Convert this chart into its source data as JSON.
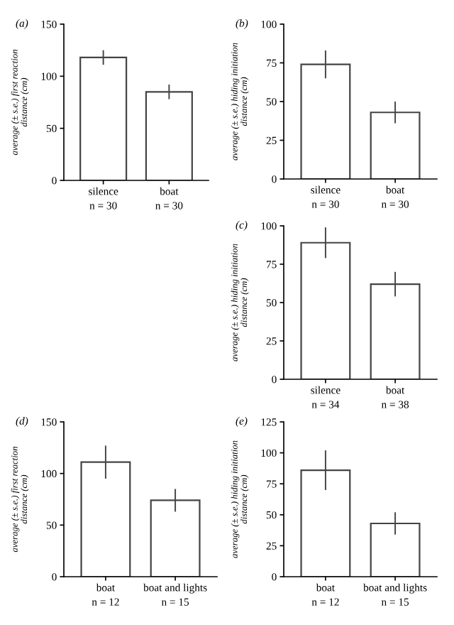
{
  "chart_data": [
    {
      "type": "bar",
      "title": "(a)",
      "ylabel": "average (± s.e.) first reaction\ndistance (cm)",
      "categories": [
        "silence\nn = 30",
        "boat\nn = 30"
      ],
      "values": [
        118,
        85
      ],
      "errors": [
        7,
        7
      ],
      "color": "#ffffff",
      "ylim": [
        0,
        150
      ],
      "yticks": [
        0,
        50,
        100,
        150
      ],
      "grid": false
    },
    {
      "type": "bar",
      "title": "(b)",
      "ylabel": "average (± s.e.) hiding initiation\ndistance (cm)",
      "categories": [
        "silence\nn = 30",
        "boat\nn = 30"
      ],
      "values": [
        74,
        43
      ],
      "errors": [
        9,
        7
      ],
      "color": "#ffffff",
      "ylim": [
        0,
        100
      ],
      "yticks": [
        0,
        25,
        50,
        75,
        100
      ],
      "grid": false
    },
    {
      "type": "bar",
      "title": "(c)",
      "ylabel": "average (± s.e.) hiding initiation\ndistance (cm)",
      "categories": [
        "silence\nn = 34",
        "boat\nn = 38"
      ],
      "values": [
        89,
        62
      ],
      "errors": [
        10,
        8
      ],
      "color": "#ffffff",
      "ylim": [
        0,
        100
      ],
      "yticks": [
        0,
        25,
        50,
        75,
        100
      ],
      "grid": false
    },
    {
      "type": "bar",
      "title": "(d)",
      "ylabel": "average (± s.e.) first reaction\ndistance (cm)",
      "categories": [
        "boat\nn = 12",
        "boat and lights\nn = 15"
      ],
      "values": [
        111,
        74
      ],
      "errors": [
        16,
        11
      ],
      "color": "#ffffff",
      "ylim": [
        0,
        150
      ],
      "yticks": [
        0,
        50,
        100,
        150
      ],
      "grid": false
    },
    {
      "type": "bar",
      "title": "(e)",
      "ylabel": "average (± s.e.) hiding initiation\ndistance (cm)",
      "categories": [
        "boat\nn = 12",
        "boat and lights\nn = 15"
      ],
      "values": [
        86,
        43
      ],
      "errors": [
        16,
        9
      ],
      "color": "#ffffff",
      "ylim": [
        0,
        125
      ],
      "yticks": [
        0,
        25,
        50,
        75,
        100,
        125
      ],
      "grid": false
    }
  ]
}
